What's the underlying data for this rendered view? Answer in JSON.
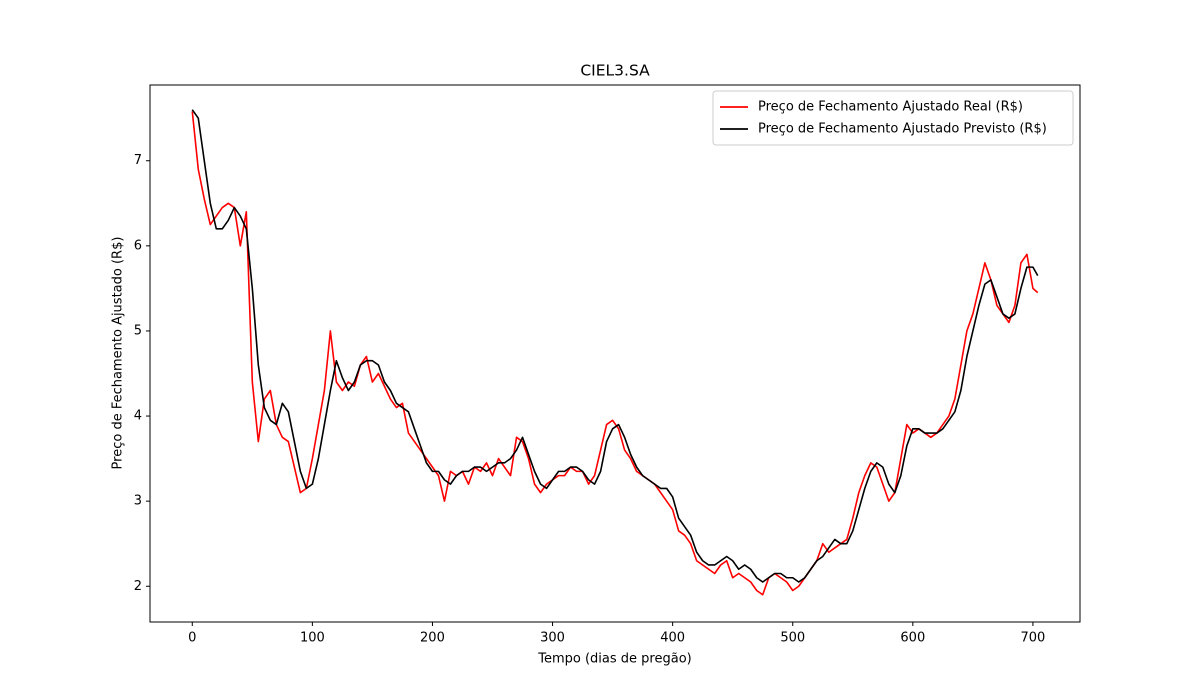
{
  "chart_data": {
    "type": "line",
    "title": "CIEL3.SA",
    "x_label": "Tempo (dias de pregão)",
    "y_label": "Preço de Fechamento Ajustado (R$)",
    "x": [
      0,
      5,
      10,
      15,
      20,
      25,
      30,
      35,
      40,
      45,
      50,
      55,
      60,
      65,
      70,
      75,
      80,
      85,
      90,
      95,
      100,
      105,
      110,
      115,
      120,
      125,
      130,
      135,
      140,
      145,
      150,
      155,
      160,
      165,
      170,
      175,
      180,
      185,
      190,
      195,
      200,
      205,
      210,
      215,
      220,
      225,
      230,
      235,
      240,
      245,
      250,
      255,
      260,
      265,
      270,
      275,
      280,
      285,
      290,
      295,
      300,
      305,
      310,
      315,
      320,
      325,
      330,
      335,
      340,
      345,
      350,
      355,
      360,
      365,
      370,
      375,
      380,
      385,
      390,
      395,
      400,
      405,
      410,
      415,
      420,
      425,
      430,
      435,
      440,
      445,
      450,
      455,
      460,
      465,
      470,
      475,
      480,
      485,
      490,
      495,
      500,
      505,
      510,
      515,
      520,
      525,
      530,
      535,
      540,
      545,
      550,
      555,
      560,
      565,
      570,
      575,
      580,
      585,
      590,
      595,
      600,
      605,
      610,
      615,
      620,
      625,
      630,
      635,
      640,
      645,
      650,
      655,
      660,
      665,
      670,
      675,
      680,
      685,
      690,
      695,
      700,
      704
    ],
    "series": [
      {
        "name": "Preço de Fechamento Ajustado Real (R$)",
        "color": "#ff0000",
        "values": [
          7.58,
          6.9,
          6.55,
          6.25,
          6.35,
          6.45,
          6.5,
          6.45,
          6.0,
          6.4,
          4.4,
          3.7,
          4.2,
          4.3,
          3.9,
          3.75,
          3.7,
          3.4,
          3.1,
          3.15,
          3.5,
          3.9,
          4.3,
          5.0,
          4.4,
          4.3,
          4.4,
          4.35,
          4.6,
          4.7,
          4.4,
          4.5,
          4.35,
          4.2,
          4.1,
          4.15,
          3.8,
          3.7,
          3.6,
          3.5,
          3.4,
          3.3,
          3.0,
          3.35,
          3.3,
          3.35,
          3.2,
          3.4,
          3.35,
          3.45,
          3.3,
          3.5,
          3.4,
          3.3,
          3.75,
          3.7,
          3.5,
          3.2,
          3.1,
          3.2,
          3.25,
          3.3,
          3.3,
          3.4,
          3.35,
          3.35,
          3.2,
          3.3,
          3.6,
          3.9,
          3.95,
          3.85,
          3.6,
          3.5,
          3.35,
          3.3,
          3.25,
          3.2,
          3.1,
          3.0,
          2.9,
          2.65,
          2.6,
          2.5,
          2.3,
          2.25,
          2.2,
          2.15,
          2.25,
          2.3,
          2.1,
          2.15,
          2.1,
          2.05,
          1.95,
          1.9,
          2.1,
          2.15,
          2.1,
          2.05,
          1.95,
          2.0,
          2.1,
          2.2,
          2.3,
          2.5,
          2.4,
          2.45,
          2.5,
          2.55,
          2.8,
          3.1,
          3.3,
          3.45,
          3.4,
          3.2,
          3.0,
          3.1,
          3.5,
          3.9,
          3.8,
          3.85,
          3.8,
          3.75,
          3.8,
          3.9,
          4.0,
          4.2,
          4.6,
          5.0,
          5.2,
          5.5,
          5.8,
          5.6,
          5.3,
          5.2,
          5.1,
          5.3,
          5.8,
          5.9,
          5.5,
          5.45
        ]
      },
      {
        "name": "Preço de Fechamento Ajustado Previsto (R$)",
        "color": "#000000",
        "values": [
          7.6,
          7.5,
          7.0,
          6.5,
          6.2,
          6.2,
          6.3,
          6.45,
          6.35,
          6.2,
          5.5,
          4.6,
          4.1,
          3.95,
          3.9,
          4.15,
          4.05,
          3.7,
          3.35,
          3.15,
          3.2,
          3.5,
          3.9,
          4.3,
          4.65,
          4.45,
          4.3,
          4.4,
          4.6,
          4.65,
          4.65,
          4.6,
          4.4,
          4.3,
          4.15,
          4.1,
          4.05,
          3.85,
          3.65,
          3.45,
          3.35,
          3.35,
          3.25,
          3.2,
          3.3,
          3.35,
          3.35,
          3.4,
          3.4,
          3.35,
          3.4,
          3.45,
          3.45,
          3.5,
          3.6,
          3.75,
          3.55,
          3.35,
          3.2,
          3.15,
          3.25,
          3.35,
          3.35,
          3.4,
          3.4,
          3.35,
          3.25,
          3.2,
          3.35,
          3.7,
          3.85,
          3.9,
          3.75,
          3.55,
          3.4,
          3.3,
          3.25,
          3.2,
          3.15,
          3.15,
          3.05,
          2.8,
          2.7,
          2.6,
          2.4,
          2.3,
          2.25,
          2.25,
          2.3,
          2.35,
          2.3,
          2.2,
          2.25,
          2.2,
          2.1,
          2.05,
          2.1,
          2.15,
          2.15,
          2.1,
          2.1,
          2.05,
          2.1,
          2.2,
          2.3,
          2.35,
          2.45,
          2.55,
          2.5,
          2.5,
          2.65,
          2.9,
          3.15,
          3.35,
          3.45,
          3.4,
          3.2,
          3.1,
          3.3,
          3.65,
          3.85,
          3.85,
          3.8,
          3.8,
          3.8,
          3.85,
          3.95,
          4.05,
          4.3,
          4.7,
          5.0,
          5.3,
          5.55,
          5.6,
          5.4,
          5.2,
          5.15,
          5.2,
          5.5,
          5.75,
          5.75,
          5.65
        ]
      }
    ],
    "xlim": [
      -35.2,
      739.2
    ],
    "ylim": [
      1.58,
      7.89
    ],
    "xticks": [
      0,
      100,
      200,
      300,
      400,
      500,
      600,
      700
    ],
    "yticks": [
      2,
      3,
      4,
      5,
      6,
      7
    ],
    "legend": "upper right",
    "grid": false
  }
}
